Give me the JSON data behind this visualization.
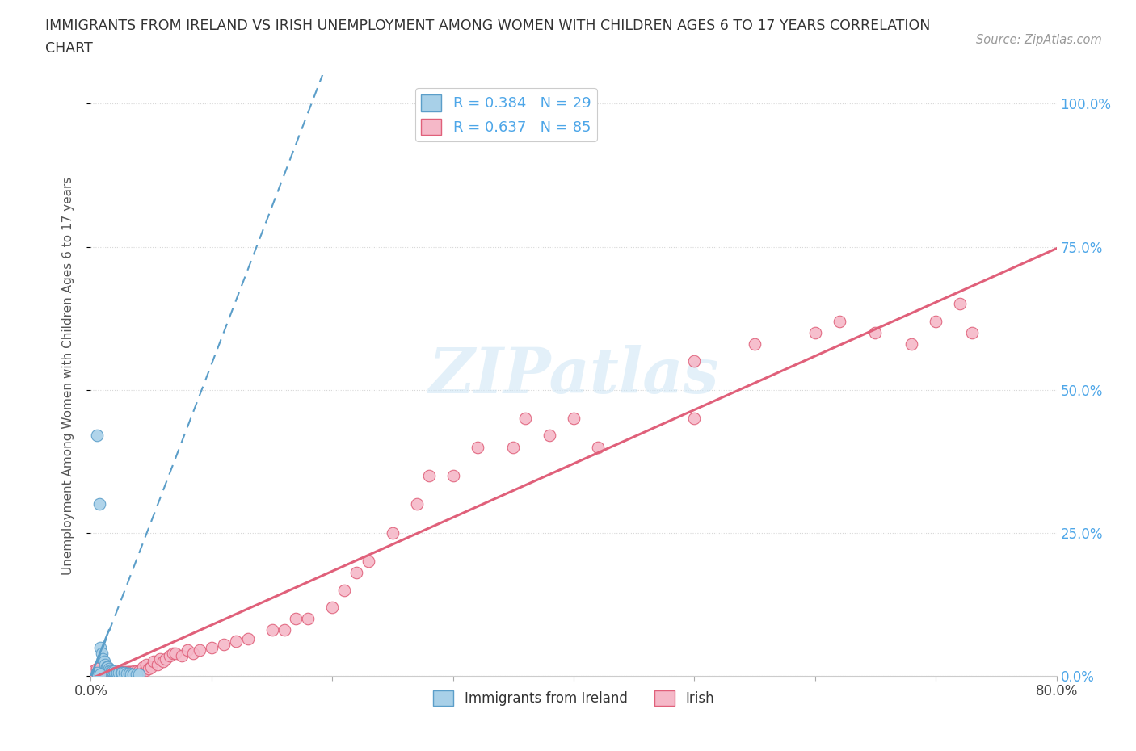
{
  "title_line1": "IMMIGRANTS FROM IRELAND VS IRISH UNEMPLOYMENT AMONG WOMEN WITH CHILDREN AGES 6 TO 17 YEARS CORRELATION",
  "title_line2": "CHART",
  "source": "Source: ZipAtlas.com",
  "ylabel": "Unemployment Among Women with Children Ages 6 to 17 years",
  "xlim": [
    0.0,
    0.8
  ],
  "ylim": [
    0.0,
    1.05
  ],
  "xtick_vals": [
    0.0,
    0.1,
    0.2,
    0.3,
    0.4,
    0.5,
    0.6,
    0.7,
    0.8
  ],
  "xticklabels": [
    "0.0%",
    "",
    "",
    "",
    "",
    "",
    "",
    "",
    "80.0%"
  ],
  "ytick_vals": [
    0.0,
    0.25,
    0.5,
    0.75,
    1.0
  ],
  "yticklabels": [
    "0.0%",
    "25.0%",
    "50.0%",
    "75.0%",
    "100.0%"
  ],
  "color_blue": "#a8d0e8",
  "color_blue_edge": "#5b9ec9",
  "color_blue_line": "#5b9ec9",
  "color_pink": "#f5b8c8",
  "color_pink_edge": "#e0607a",
  "color_pink_line": "#e0607a",
  "watermark": "ZIPatlas",
  "legend_r_blue": "R = 0.384",
  "legend_n_blue": "N = 29",
  "legend_r_pink": "R = 0.637",
  "legend_n_pink": "N = 85",
  "blue_line_x0": 0.0,
  "blue_line_y0": 0.0,
  "blue_line_x1": 0.055,
  "blue_line_y1": 0.28,
  "blue_line_slope": 5.5,
  "blue_line_intercept": -0.005,
  "pink_line_slope": 0.94,
  "pink_line_intercept": -0.005,
  "background_color": "#ffffff",
  "grid_color": "#d8d8d8",
  "blue_scatter_x": [
    0.005,
    0.007,
    0.008,
    0.009,
    0.01,
    0.011,
    0.012,
    0.013,
    0.014,
    0.015,
    0.016,
    0.017,
    0.018,
    0.019,
    0.02,
    0.021,
    0.022,
    0.023,
    0.025,
    0.026,
    0.028,
    0.03,
    0.032,
    0.033,
    0.035,
    0.038,
    0.04,
    0.005,
    0.008
  ],
  "blue_scatter_y": [
    0.42,
    0.3,
    0.05,
    0.04,
    0.03,
    0.025,
    0.02,
    0.015,
    0.015,
    0.012,
    0.01,
    0.01,
    0.008,
    0.008,
    0.006,
    0.006,
    0.005,
    0.005,
    0.005,
    0.005,
    0.005,
    0.004,
    0.004,
    0.003,
    0.003,
    0.003,
    0.003,
    0.006,
    0.003
  ],
  "pink_scatter_x": [
    0.003,
    0.005,
    0.006,
    0.007,
    0.008,
    0.009,
    0.01,
    0.011,
    0.012,
    0.013,
    0.014,
    0.015,
    0.016,
    0.017,
    0.018,
    0.019,
    0.02,
    0.021,
    0.022,
    0.023,
    0.025,
    0.026,
    0.027,
    0.028,
    0.03,
    0.031,
    0.032,
    0.033,
    0.034,
    0.035,
    0.036,
    0.038,
    0.04,
    0.042,
    0.043,
    0.045,
    0.046,
    0.048,
    0.05,
    0.052,
    0.055,
    0.057,
    0.06,
    0.062,
    0.065,
    0.068,
    0.07,
    0.075,
    0.08,
    0.085,
    0.09,
    0.1,
    0.11,
    0.12,
    0.13,
    0.15,
    0.16,
    0.17,
    0.18,
    0.2,
    0.21,
    0.22,
    0.23,
    0.25,
    0.27,
    0.28,
    0.3,
    0.32,
    0.35,
    0.36,
    0.38,
    0.4,
    0.42,
    0.5,
    0.55,
    0.6,
    0.62,
    0.65,
    0.68,
    0.7,
    0.72,
    0.73,
    0.003,
    0.005,
    0.5
  ],
  "pink_scatter_y": [
    0.005,
    0.005,
    0.005,
    0.005,
    0.005,
    0.005,
    0.005,
    0.005,
    0.005,
    0.005,
    0.006,
    0.006,
    0.006,
    0.005,
    0.006,
    0.006,
    0.006,
    0.006,
    0.006,
    0.006,
    0.006,
    0.007,
    0.007,
    0.007,
    0.007,
    0.007,
    0.007,
    0.007,
    0.007,
    0.007,
    0.008,
    0.008,
    0.008,
    0.008,
    0.015,
    0.01,
    0.02,
    0.012,
    0.015,
    0.025,
    0.02,
    0.03,
    0.025,
    0.03,
    0.035,
    0.04,
    0.04,
    0.035,
    0.045,
    0.04,
    0.045,
    0.05,
    0.055,
    0.06,
    0.065,
    0.08,
    0.08,
    0.1,
    0.1,
    0.12,
    0.15,
    0.18,
    0.2,
    0.25,
    0.3,
    0.35,
    0.35,
    0.4,
    0.4,
    0.45,
    0.42,
    0.45,
    0.4,
    0.55,
    0.58,
    0.6,
    0.62,
    0.6,
    0.58,
    0.62,
    0.65,
    0.6,
    0.01,
    0.012,
    0.45
  ]
}
